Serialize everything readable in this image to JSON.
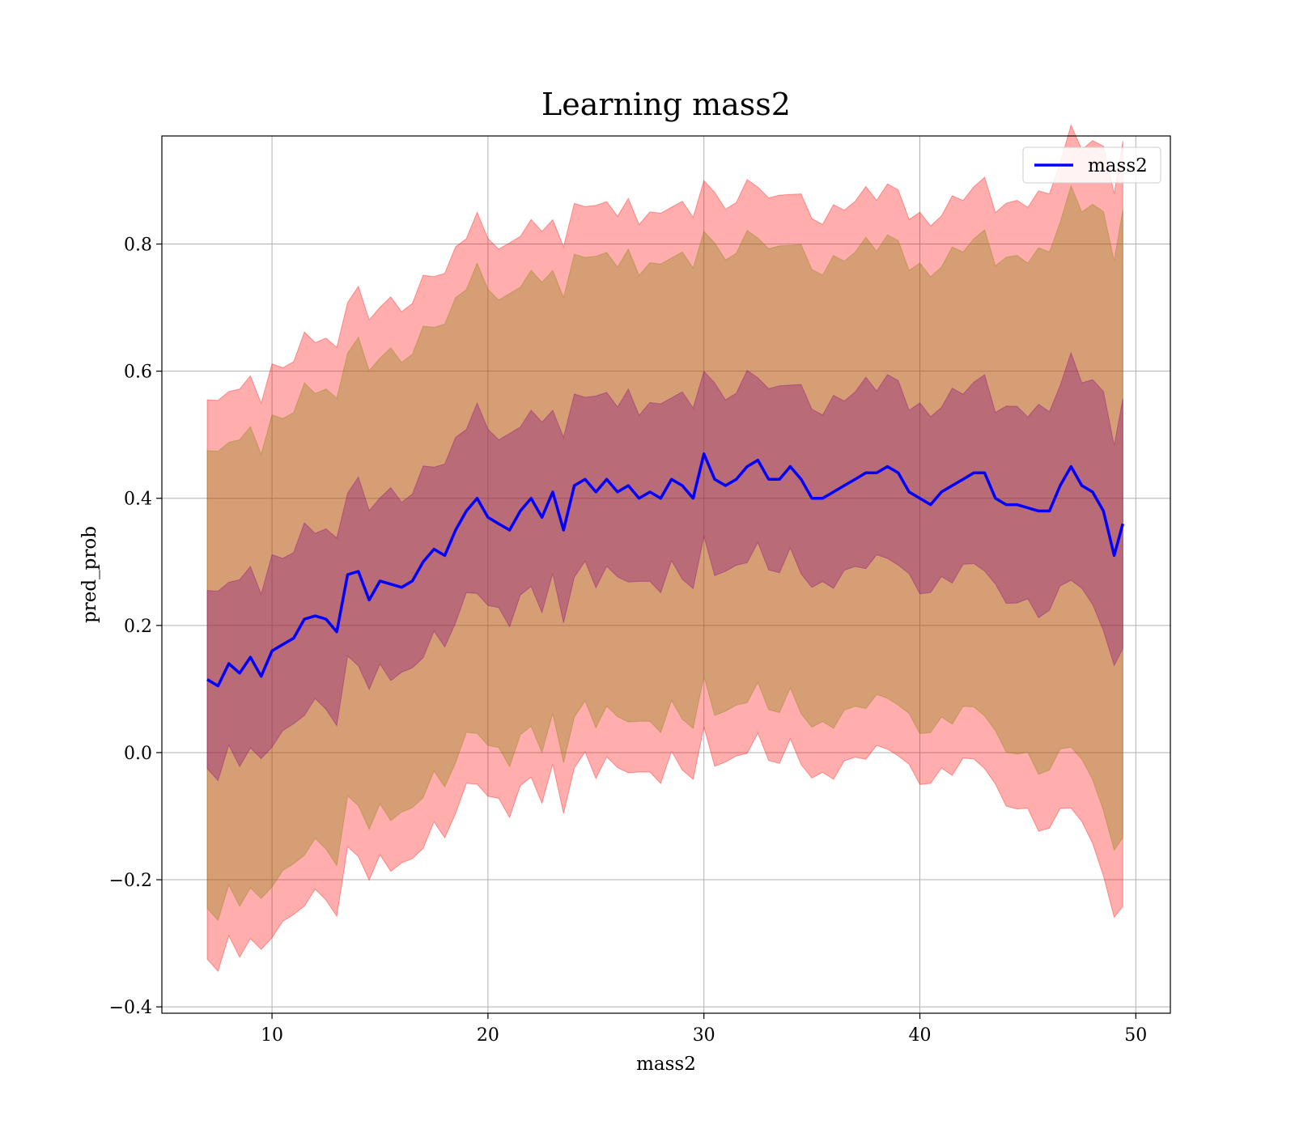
{
  "chart_data": {
    "type": "line",
    "title": "Learning mass2",
    "xlabel": "mass2",
    "ylabel": "pred_prob",
    "xlim": [
      4.9,
      51.6
    ],
    "ylim": [
      -0.41,
      0.97
    ],
    "x_ticks": [
      10,
      20,
      30,
      40,
      50
    ],
    "y_ticks": [
      -0.4,
      -0.2,
      0.0,
      0.2,
      0.4,
      0.6,
      0.8
    ],
    "y_tick_labels": [
      "−0.4",
      "−0.2",
      "0.0",
      "0.2",
      "0.4",
      "0.6",
      "0.8"
    ],
    "grid": true,
    "legend": {
      "placement": "top-right",
      "entries": [
        "mass2"
      ]
    },
    "colors": {
      "line": "#0000ff",
      "band_outer": "#ff0000",
      "band_middle": "#808000",
      "band_inner": "#800080",
      "grid": "#b0b0b0"
    },
    "x": [
      7.0,
      7.5,
      8.0,
      8.5,
      9.0,
      9.5,
      10.0,
      10.5,
      11.0,
      11.5,
      12.0,
      12.5,
      13.0,
      13.5,
      14.0,
      14.5,
      15.0,
      15.5,
      16.0,
      16.5,
      17.0,
      17.5,
      18.0,
      18.5,
      19.0,
      19.5,
      20.0,
      20.5,
      21.0,
      21.5,
      22.0,
      22.5,
      23.0,
      23.5,
      24.0,
      24.5,
      25.0,
      25.5,
      26.0,
      26.5,
      27.0,
      27.5,
      28.0,
      28.5,
      29.0,
      29.5,
      30.0,
      30.5,
      31.0,
      31.5,
      32.0,
      32.5,
      33.0,
      33.5,
      34.0,
      34.5,
      35.0,
      35.5,
      36.0,
      36.5,
      37.0,
      37.5,
      38.0,
      38.5,
      39.0,
      39.5,
      40.0,
      40.5,
      41.0,
      41.5,
      42.0,
      42.5,
      43.0,
      43.5,
      44.0,
      44.5,
      45.0,
      45.5,
      46.0,
      46.5,
      47.0,
      47.5,
      48.0,
      48.5,
      49.0,
      49.4
    ],
    "series": [
      {
        "name": "mass2",
        "values": [
          0.115,
          0.105,
          0.14,
          0.125,
          0.15,
          0.12,
          0.16,
          0.17,
          0.18,
          0.21,
          0.215,
          0.21,
          0.19,
          0.28,
          0.285,
          0.24,
          0.27,
          0.265,
          0.26,
          0.27,
          0.3,
          0.32,
          0.31,
          0.35,
          0.38,
          0.4,
          0.37,
          0.36,
          0.35,
          0.38,
          0.4,
          0.37,
          0.41,
          0.35,
          0.42,
          0.43,
          0.41,
          0.43,
          0.41,
          0.42,
          0.4,
          0.41,
          0.4,
          0.43,
          0.42,
          0.4,
          0.47,
          0.43,
          0.42,
          0.43,
          0.45,
          0.46,
          0.43,
          0.43,
          0.45,
          0.43,
          0.4,
          0.4,
          0.41,
          0.42,
          0.43,
          0.44,
          0.44,
          0.45,
          0.44,
          0.41,
          0.4,
          0.39,
          0.41,
          0.42,
          0.43,
          0.44,
          0.44,
          0.4,
          0.39,
          0.39,
          0.385,
          0.38,
          0.38,
          0.42,
          0.45,
          0.42,
          0.41,
          0.38,
          0.31,
          0.36
        ]
      }
    ]
  }
}
